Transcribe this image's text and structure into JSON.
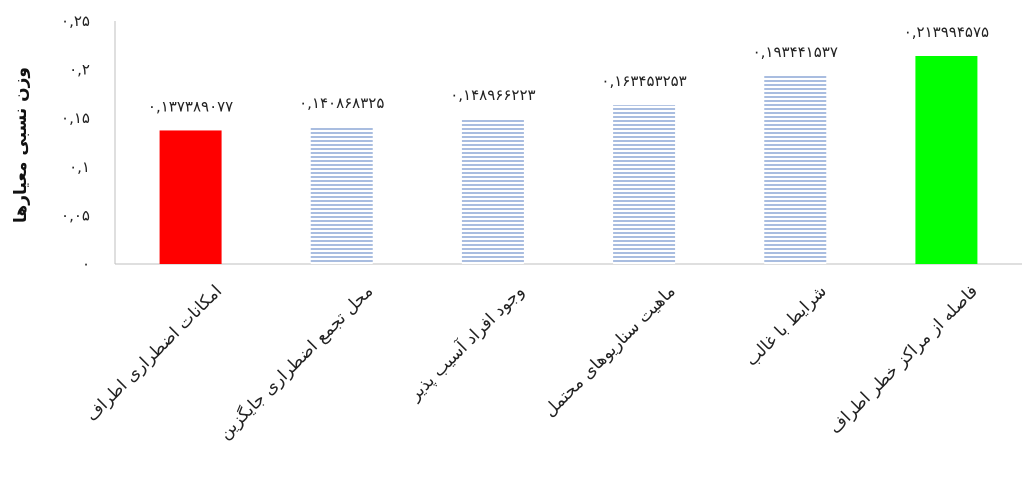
{
  "chart_data": {
    "type": "bar",
    "categories": [
      "امکانات اضطراری اطراف",
      "محل تجمع اضطراری جایگزین",
      "وجود افراد آسیب پذیر",
      "ماهیت سناریوهای محتمل",
      "شرایط با غالب",
      "فاصله از مراکز خطر اطراف"
    ],
    "values": [
      0.137389077,
      0.140868325,
      0.148966223,
      0.163453253,
      0.193441537,
      0.213994575
    ],
    "data_labels": [
      "۰,۱۳۷۳۸۹۰۷۷",
      "۰,۱۴۰۸۶۸۳۲۵",
      "۰,۱۴۸۹۶۶۲۲۳",
      "۰,۱۶۳۴۵۳۲۵۳",
      "۰,۱۹۳۴۴۱۵۳۷",
      "۰,۲۱۳۹۹۴۵۷۵"
    ],
    "bar_colors": [
      "#ff0000",
      "#b4c7e7",
      "#b4c7e7",
      "#b4c7e7",
      "#b4c7e7",
      "#00ff00"
    ],
    "bar_patterns": [
      "solid",
      "horizontal-stripes",
      "horizontal-stripes",
      "horizontal-stripes",
      "horizontal-stripes",
      "solid"
    ],
    "ylabel": "وزن نسبی معیارها",
    "xlabel": "",
    "title": "",
    "ylim": [
      0,
      0.25
    ],
    "yticks": [
      0,
      0.05,
      0.1,
      0.15,
      0.2,
      0.25
    ],
    "ytick_labels": [
      "۰",
      "۰,۰۵",
      "۰,۱",
      "۰,۱۵",
      "۰,۲",
      "۰,۲۵"
    ],
    "grid": false,
    "legend": "none"
  }
}
